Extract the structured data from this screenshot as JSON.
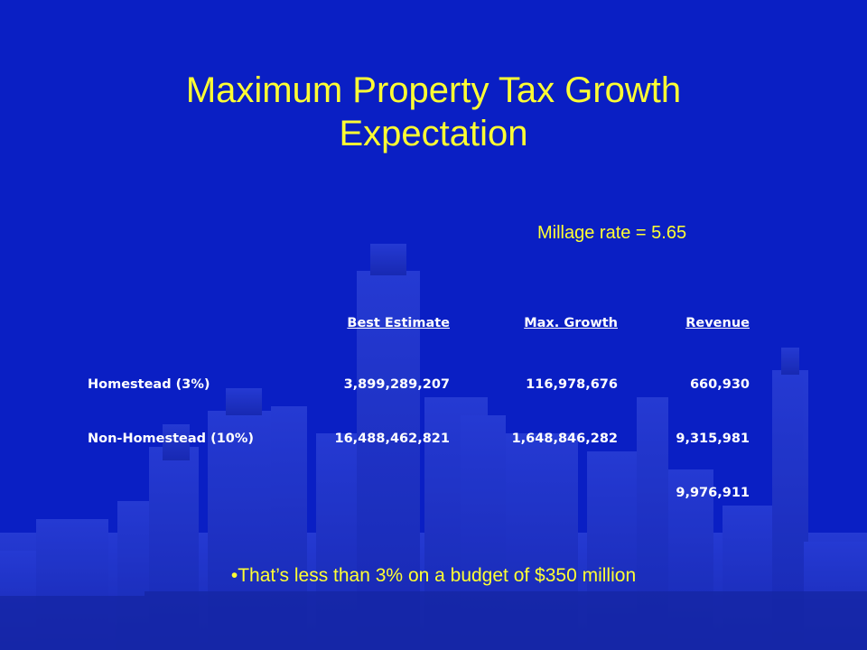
{
  "slide": {
    "title_line1": "Maximum Property Tax Growth",
    "title_line2": "Expectation",
    "millage": "Millage rate = 5.65",
    "table": {
      "headers": [
        "Best Estimate",
        "Max. Growth",
        "Revenue"
      ],
      "rows": [
        {
          "label": "Homestead (3%)",
          "best": "3,899,289,207",
          "growth": "116,978,676",
          "revenue": "660,930"
        },
        {
          "label": "Non-Homestead (10%)",
          "best": "16,488,462,821",
          "growth": "1,648,846,282",
          "revenue": "9,315,981"
        }
      ],
      "total_revenue": "9,976,911"
    },
    "note": "•That’s less than 3% on a budget of $350 million"
  },
  "colors": {
    "background": "#0a1fc4",
    "title": "#ffff33",
    "table_text": "#ffffff"
  }
}
